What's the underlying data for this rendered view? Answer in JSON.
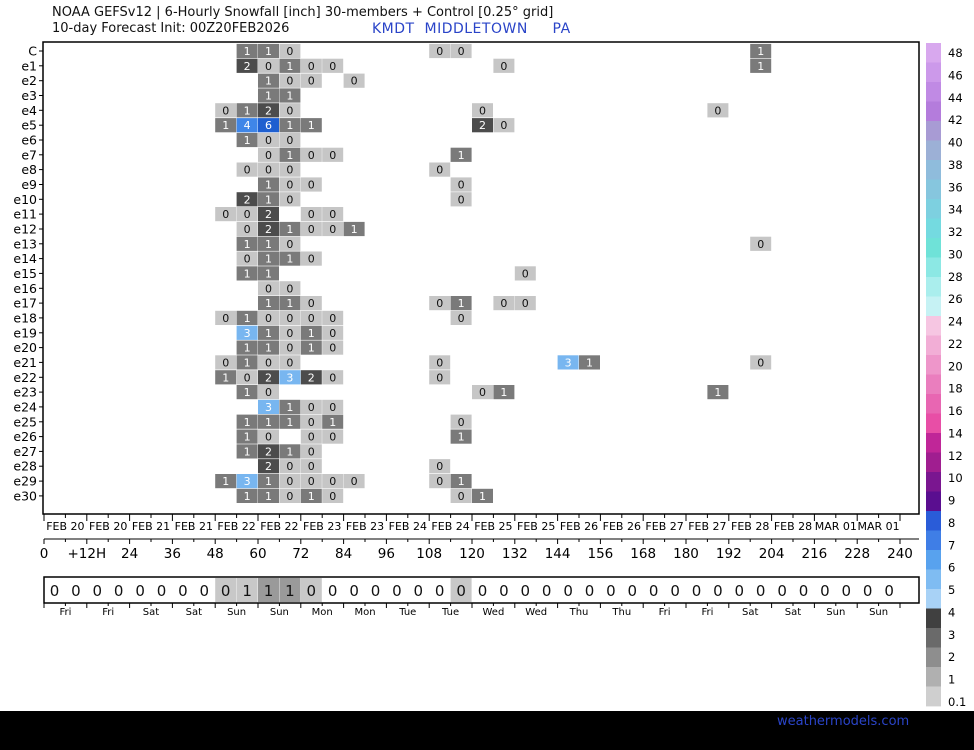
{
  "header": {
    "title_line1": "NOAA GEFSv12 | 6-Hourly Snowfall [inch]  30-members + Control [0.25° grid]",
    "title_line2": "10-day Forecast Init: 00Z20FEB2026",
    "location": "KMDT  MIDDLETOWN     PA"
  },
  "credit": "weathermodels.com",
  "chart_data": {
    "type": "heatmap",
    "members": [
      "C",
      "e1",
      "e2",
      "e3",
      "e4",
      "e5",
      "e6",
      "e7",
      "e8",
      "e9",
      "e10",
      "e11",
      "e12",
      "e13",
      "e14",
      "e15",
      "e16",
      "e17",
      "e18",
      "e19",
      "e20",
      "e21",
      "e22",
      "e23",
      "e24",
      "e25",
      "e26",
      "e27",
      "e28",
      "e29",
      "e30"
    ],
    "date_labels": [
      "FEB 20",
      "FEB 20",
      "FEB 21",
      "FEB 21",
      "FEB 22",
      "FEB 22",
      "FEB 23",
      "FEB 23",
      "FEB 24",
      "FEB 24",
      "FEB 25",
      "FEB 25",
      "FEB 26",
      "FEB 26",
      "FEB 27",
      "FEB 27",
      "FEB 28",
      "FEB 28",
      "MAR 01",
      "MAR 01"
    ],
    "hour_ticks": [
      "0",
      "+12H",
      "24",
      "36",
      "48",
      "60",
      "72",
      "84",
      "96",
      "108",
      "120",
      "132",
      "144",
      "156",
      "168",
      "180",
      "192",
      "204",
      "216",
      "228",
      "240"
    ],
    "forecast_hours": [
      6,
      12,
      18,
      24,
      30,
      36,
      42,
      48,
      54,
      60,
      66,
      72,
      78,
      84,
      90,
      96,
      102,
      108,
      114,
      120,
      126,
      132,
      138,
      144,
      150,
      156,
      162,
      168,
      174,
      180,
      186,
      192,
      198,
      204,
      210,
      216,
      222,
      228,
      234,
      240
    ],
    "cells": [
      [
        0,
        60,
        "1"
      ],
      [
        0,
        66,
        "1"
      ],
      [
        0,
        72,
        "0"
      ],
      [
        0,
        114,
        "0"
      ],
      [
        0,
        120,
        "0"
      ],
      [
        0,
        204,
        "1"
      ],
      [
        1,
        60,
        "2"
      ],
      [
        1,
        66,
        "0"
      ],
      [
        1,
        72,
        "1"
      ],
      [
        1,
        78,
        "0"
      ],
      [
        1,
        84,
        "0"
      ],
      [
        1,
        132,
        "0"
      ],
      [
        1,
        204,
        "1"
      ],
      [
        2,
        66,
        "1"
      ],
      [
        2,
        72,
        "0"
      ],
      [
        2,
        78,
        "0"
      ],
      [
        2,
        90,
        "0"
      ],
      [
        3,
        66,
        "1"
      ],
      [
        3,
        72,
        "1"
      ],
      [
        4,
        54,
        "0"
      ],
      [
        4,
        60,
        "1"
      ],
      [
        4,
        66,
        "2"
      ],
      [
        4,
        72,
        "0"
      ],
      [
        4,
        126,
        "0"
      ],
      [
        4,
        192,
        "0"
      ],
      [
        5,
        54,
        "1"
      ],
      [
        5,
        60,
        "4"
      ],
      [
        5,
        66,
        "6"
      ],
      [
        5,
        72,
        "1"
      ],
      [
        5,
        78,
        "1"
      ],
      [
        5,
        126,
        "2"
      ],
      [
        5,
        132,
        "0"
      ],
      [
        6,
        60,
        "1"
      ],
      [
        6,
        66,
        "0"
      ],
      [
        6,
        72,
        "0"
      ],
      [
        7,
        66,
        "0"
      ],
      [
        7,
        72,
        "1"
      ],
      [
        7,
        78,
        "0"
      ],
      [
        7,
        84,
        "0"
      ],
      [
        7,
        120,
        "1"
      ],
      [
        8,
        60,
        "0"
      ],
      [
        8,
        66,
        "0"
      ],
      [
        8,
        72,
        "0"
      ],
      [
        8,
        114,
        "0"
      ],
      [
        9,
        66,
        "1"
      ],
      [
        9,
        72,
        "0"
      ],
      [
        9,
        78,
        "0"
      ],
      [
        9,
        120,
        "0"
      ],
      [
        10,
        60,
        "2"
      ],
      [
        10,
        66,
        "1"
      ],
      [
        10,
        72,
        "0"
      ],
      [
        10,
        120,
        "0"
      ],
      [
        11,
        54,
        "0"
      ],
      [
        11,
        60,
        "0"
      ],
      [
        11,
        66,
        "2"
      ],
      [
        11,
        78,
        "0"
      ],
      [
        11,
        84,
        "0"
      ],
      [
        12,
        60,
        "0"
      ],
      [
        12,
        66,
        "2"
      ],
      [
        12,
        72,
        "1"
      ],
      [
        12,
        78,
        "0"
      ],
      [
        12,
        84,
        "0"
      ],
      [
        12,
        90,
        "1"
      ],
      [
        13,
        60,
        "1"
      ],
      [
        13,
        66,
        "1"
      ],
      [
        13,
        72,
        "0"
      ],
      [
        13,
        204,
        "0"
      ],
      [
        14,
        60,
        "0"
      ],
      [
        14,
        66,
        "1"
      ],
      [
        14,
        72,
        "1"
      ],
      [
        14,
        78,
        "0"
      ],
      [
        15,
        60,
        "1"
      ],
      [
        15,
        66,
        "1"
      ],
      [
        15,
        138,
        "0"
      ],
      [
        16,
        66,
        "0"
      ],
      [
        16,
        72,
        "0"
      ],
      [
        17,
        66,
        "1"
      ],
      [
        17,
        72,
        "1"
      ],
      [
        17,
        78,
        "0"
      ],
      [
        17,
        114,
        "0"
      ],
      [
        17,
        120,
        "1"
      ],
      [
        17,
        132,
        "0"
      ],
      [
        17,
        138,
        "0"
      ],
      [
        18,
        54,
        "0"
      ],
      [
        18,
        60,
        "1"
      ],
      [
        18,
        66,
        "0"
      ],
      [
        18,
        72,
        "0"
      ],
      [
        18,
        78,
        "0"
      ],
      [
        18,
        84,
        "0"
      ],
      [
        18,
        120,
        "0"
      ],
      [
        19,
        60,
        "3"
      ],
      [
        19,
        66,
        "1"
      ],
      [
        19,
        72,
        "0"
      ],
      [
        19,
        78,
        "1"
      ],
      [
        19,
        84,
        "0"
      ],
      [
        20,
        60,
        "1"
      ],
      [
        20,
        66,
        "1"
      ],
      [
        20,
        72,
        "0"
      ],
      [
        20,
        78,
        "1"
      ],
      [
        20,
        84,
        "0"
      ],
      [
        21,
        54,
        "0"
      ],
      [
        21,
        60,
        "1"
      ],
      [
        21,
        66,
        "0"
      ],
      [
        21,
        72,
        "0"
      ],
      [
        21,
        114,
        "0"
      ],
      [
        21,
        150,
        "3"
      ],
      [
        21,
        156,
        "1"
      ],
      [
        21,
        204,
        "0"
      ],
      [
        22,
        54,
        "1"
      ],
      [
        22,
        60,
        "0"
      ],
      [
        22,
        66,
        "2"
      ],
      [
        22,
        72,
        "3"
      ],
      [
        22,
        78,
        "2"
      ],
      [
        22,
        84,
        "0"
      ],
      [
        22,
        114,
        "0"
      ],
      [
        23,
        60,
        "1"
      ],
      [
        23,
        66,
        "0"
      ],
      [
        23,
        126,
        "0"
      ],
      [
        23,
        132,
        "1"
      ],
      [
        23,
        192,
        "1"
      ],
      [
        24,
        66,
        "3"
      ],
      [
        24,
        72,
        "1"
      ],
      [
        24,
        78,
        "0"
      ],
      [
        24,
        84,
        "0"
      ],
      [
        25,
        60,
        "1"
      ],
      [
        25,
        66,
        "1"
      ],
      [
        25,
        72,
        "1"
      ],
      [
        25,
        78,
        "0"
      ],
      [
        25,
        84,
        "1"
      ],
      [
        25,
        120,
        "0"
      ],
      [
        26,
        60,
        "1"
      ],
      [
        26,
        66,
        "0"
      ],
      [
        26,
        78,
        "0"
      ],
      [
        26,
        84,
        "0"
      ],
      [
        26,
        120,
        "1"
      ],
      [
        27,
        60,
        "1"
      ],
      [
        27,
        66,
        "2"
      ],
      [
        27,
        72,
        "1"
      ],
      [
        27,
        78,
        "0"
      ],
      [
        28,
        66,
        "2"
      ],
      [
        28,
        72,
        "0"
      ],
      [
        28,
        78,
        "0"
      ],
      [
        28,
        114,
        "0"
      ],
      [
        29,
        54,
        "1"
      ],
      [
        29,
        60,
        "3"
      ],
      [
        29,
        66,
        "1"
      ],
      [
        29,
        72,
        "0"
      ],
      [
        29,
        78,
        "0"
      ],
      [
        29,
        84,
        "0"
      ],
      [
        29,
        90,
        "0"
      ],
      [
        29,
        114,
        "0"
      ],
      [
        29,
        120,
        "1"
      ],
      [
        30,
        60,
        "1"
      ],
      [
        30,
        66,
        "1"
      ],
      [
        30,
        72,
        "0"
      ],
      [
        30,
        78,
        "1"
      ],
      [
        30,
        84,
        "0"
      ],
      [
        30,
        120,
        "0"
      ],
      [
        30,
        126,
        "1"
      ]
    ],
    "mean_row": {
      "values": [
        "0",
        "0",
        "0",
        "0",
        "0",
        "0",
        "0",
        "0",
        "0",
        "1",
        "1",
        "1",
        "0",
        "0",
        "0",
        "0",
        "0",
        "0",
        "0",
        "0",
        "0",
        "0",
        "0",
        "0",
        "0",
        "0",
        "0",
        "0",
        "0",
        "0",
        "0",
        "0",
        "0",
        "0",
        "0",
        "0",
        "0",
        "0",
        "0",
        "0"
      ],
      "shaded_hours": [
        54,
        60,
        66,
        72,
        78,
        120
      ]
    },
    "day_labels": [
      "Fri",
      "Fri",
      "Sat",
      "Sat",
      "Sun",
      "Sun",
      "Mon",
      "Mon",
      "Tue",
      "Tue",
      "Wed",
      "Wed",
      "Thu",
      "Thu",
      "Fri",
      "Fri",
      "Sat",
      "Sat",
      "Sun",
      "Sun"
    ],
    "colorbar": {
      "ticks": [
        "48",
        "46",
        "44",
        "42",
        "40",
        "38",
        "36",
        "34",
        "32",
        "30",
        "28",
        "26",
        "24",
        "22",
        "20",
        "18",
        "16",
        "14",
        "12",
        "10",
        "9",
        "8",
        "7",
        "6",
        "5",
        "4",
        "3",
        "2",
        "1",
        "0.1"
      ],
      "colors": [
        "#d8a8ee",
        "#cc99ea",
        "#c08ae4",
        "#b47cdc",
        "#a89bd4",
        "#9cb0d6",
        "#8fbcdc",
        "#86c6de",
        "#7dd0e0",
        "#74dae0",
        "#6fe2d8",
        "#8ce8e4",
        "#aaeeed",
        "#c6f2f4",
        "#f6c6e2",
        "#f2aed6",
        "#ee96ca",
        "#ea7ebe",
        "#e866b2",
        "#e84ea6",
        "#c02698",
        "#a01e90",
        "#7a1690",
        "#5a0e90",
        "#2a5cd8",
        "#3f7ee6",
        "#58a2ee",
        "#7fbcf2",
        "#a8d2f6",
        "#404040",
        "#6a6a6a",
        "#8e8e8e",
        "#b0b0b0",
        "#cfcfcf"
      ]
    },
    "xlabel": "",
    "ylabel": ""
  }
}
